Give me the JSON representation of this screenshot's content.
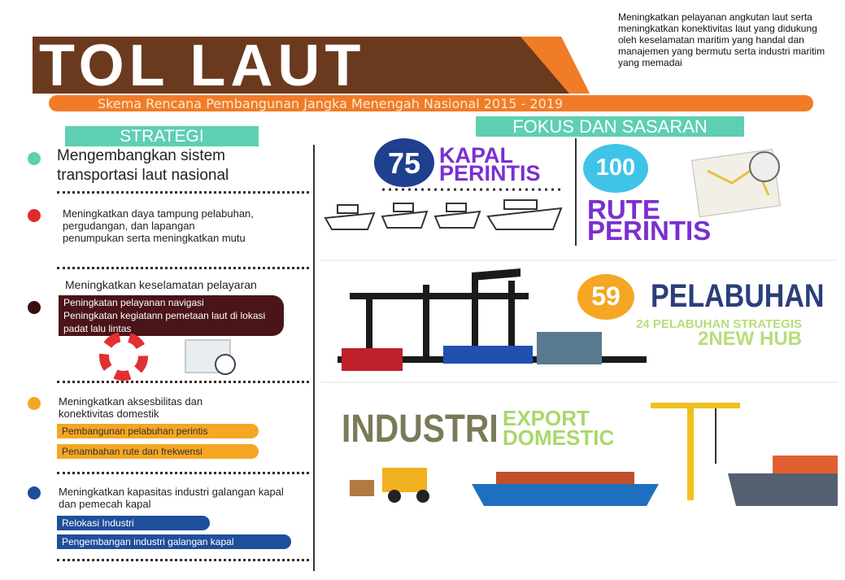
{
  "header": {
    "title": "TOL LAUT",
    "subtitle": "Skema Rencana Pembangunan Jangka Menengah Nasional 2015 - 2019",
    "description": "Meningkatkan pelayanan angkutan laut serta meningkatkan konektivitas laut yang didukung oleh keselamatan maritim yang handal dan manajemen yang bermutu serta industri maritim yang memadai"
  },
  "strategi": {
    "heading": "STRATEGI",
    "items": [
      {
        "text": "Mengembangkan sistem transportasi laut nasional"
      },
      {
        "text": "Meningkatkan daya tampung pelabuhan, pergudangan, dan lapangan penumpukan serta meningkatkan mutu"
      },
      {
        "text": "Meningkatkan keselamatan pelayaran",
        "sub": [
          "Peningkatan pelayanan navigasi",
          "Peningkatan kegiatann pemetaan laut di lokasi padat lalu lintas"
        ]
      },
      {
        "text": "Meningkatkan aksesbilitas dan konektivitas domestik",
        "sub": [
          "Pembangunan pelabuhan perintis",
          "Penambahan rute dan frekwensi"
        ]
      },
      {
        "text": "Meningkatkan kapasitas industri galangan kapal dan pemecah kapal",
        "sub": [
          "Relokasi Industri",
          "Pengembangan industri galangan kapal"
        ]
      }
    ]
  },
  "fokus": {
    "heading": "FOKUS DAN SASARAN",
    "kapal": {
      "number": "75",
      "label": "KAPAL PERINTIS"
    },
    "rute": {
      "number": "100",
      "label": "RUTE PERINTIS"
    },
    "pelabuhan": {
      "number": "59",
      "label": "PELABUHAN",
      "strategis": "24 PELABUHAN STRATEGIS",
      "hub": "2NEW HUB"
    },
    "industri": {
      "label": "INDUSTRI",
      "export": "EXPORT",
      "domestic": "DOMESTIC"
    }
  }
}
